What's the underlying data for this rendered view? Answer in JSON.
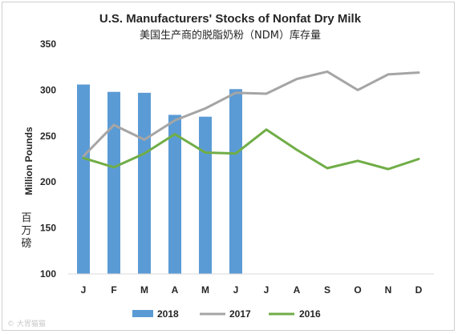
{
  "chart_data": {
    "type": "bar",
    "title": "U.S. Manufacturers' Stocks of Nonfat Dry Milk",
    "subtitle": "美国生产商的脱脂奶粉（NDM）库存量",
    "ylabel": "Million Pounds",
    "ylabel_cn": [
      "百",
      "万",
      "磅"
    ],
    "xlabel": "",
    "categories": [
      "J",
      "F",
      "M",
      "A",
      "M",
      "J",
      "J",
      "A",
      "S",
      "O",
      "N",
      "D"
    ],
    "ylim": [
      100,
      350
    ],
    "yticks": [
      100,
      150,
      200,
      250,
      300,
      350
    ],
    "grid": false,
    "legend_position": "bottom",
    "series": [
      {
        "name": "2018",
        "type": "bar",
        "color": "#5b9bd5",
        "values": [
          306,
          298,
          297,
          273,
          271,
          301,
          null,
          null,
          null,
          null,
          null,
          null
        ]
      },
      {
        "name": "2017",
        "type": "line",
        "color": "#a5a5a5",
        "values": [
          228,
          262,
          246,
          267,
          280,
          297,
          296,
          312,
          320,
          300,
          317,
          319
        ]
      },
      {
        "name": "2016",
        "type": "line",
        "color": "#70ad47",
        "values": [
          226,
          216,
          231,
          252,
          232,
          231,
          257,
          235,
          215,
          223,
          214,
          225
        ]
      }
    ]
  },
  "watermark": "© 大胃猫猫"
}
